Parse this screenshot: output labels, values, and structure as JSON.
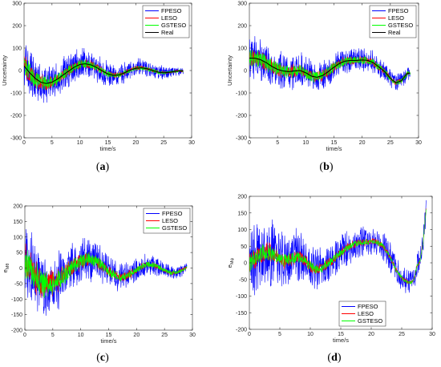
{
  "chart_data": [
    {
      "type": "line",
      "panel_label": "a",
      "xlabel": "time/s",
      "ylabel": "Uncertainty",
      "xlim": [
        0,
        30
      ],
      "ylim": [
        -300,
        300
      ],
      "x_ticks": [
        0,
        5,
        10,
        15,
        20,
        25,
        30
      ],
      "y_ticks": [
        -300,
        -200,
        -100,
        0,
        100,
        200,
        300
      ],
      "grid": false,
      "legend_position": "top-right",
      "x_end": 28.5,
      "real_curve": {
        "x": [
          0,
          1,
          2,
          3,
          4,
          5,
          6,
          7,
          8,
          9,
          10,
          11,
          12,
          13,
          14,
          15,
          16,
          17,
          18,
          19,
          20,
          21,
          22,
          23,
          24,
          25,
          26,
          27,
          28
        ],
        "y": [
          20,
          -10,
          -35,
          -52,
          -58,
          -52,
          -38,
          -20,
          -2,
          15,
          27,
          30,
          25,
          13,
          -2,
          -15,
          -22,
          -20,
          -10,
          2,
          10,
          12,
          8,
          0,
          -7,
          -10,
          -8,
          -4,
          -2
        ]
      },
      "series": [
        {
          "name": "FPESO",
          "color": "#0000ff",
          "noise_amplitude": [
            130,
            100,
            90,
            80,
            70,
            60,
            50,
            40,
            30,
            20
          ]
        },
        {
          "name": "LESO",
          "color": "#ff0000",
          "noise_amplitude": [
            60,
            40,
            30,
            25,
            20,
            15,
            12,
            10,
            8,
            6
          ]
        },
        {
          "name": "GSTESO",
          "color": "#00ff00",
          "noise_amplitude": [
            55,
            40,
            30,
            25,
            20,
            15,
            12,
            10,
            8,
            6
          ]
        },
        {
          "name": "Real",
          "color": "#000000"
        }
      ]
    },
    {
      "type": "line",
      "panel_label": "b",
      "xlabel": "time/s",
      "ylabel": "Uncertainty",
      "xlim": [
        0,
        30
      ],
      "ylim": [
        -300,
        300
      ],
      "x_ticks": [
        0,
        5,
        10,
        15,
        20,
        25,
        30
      ],
      "y_ticks": [
        -300,
        -200,
        -100,
        0,
        100,
        200,
        300
      ],
      "grid": false,
      "legend_position": "top-right",
      "x_end": 28.5,
      "real_curve": {
        "x": [
          0,
          1,
          2,
          3,
          4,
          5,
          6,
          7,
          8,
          9,
          10,
          11,
          12,
          13,
          14,
          15,
          16,
          17,
          18,
          19,
          20,
          21,
          22,
          23,
          24,
          25,
          26,
          27,
          28
        ],
        "y": [
          55,
          55,
          48,
          35,
          18,
          5,
          -2,
          -5,
          -2,
          0,
          -10,
          -25,
          -30,
          -22,
          -5,
          15,
          32,
          42,
          45,
          45,
          47,
          45,
          35,
          15,
          -5,
          -35,
          -55,
          -45,
          -12
        ]
      },
      "series": [
        {
          "name": "FPESO",
          "color": "#0000ff",
          "noise_amplitude": [
            110,
            100,
            90,
            85,
            75,
            70,
            60,
            55,
            45,
            35
          ]
        },
        {
          "name": "LESO",
          "color": "#ff0000",
          "noise_amplitude": [
            45,
            40,
            35,
            30,
            28,
            25,
            20,
            18,
            15,
            12
          ]
        },
        {
          "name": "GSTESO",
          "color": "#00ff00",
          "noise_amplitude": [
            45,
            40,
            35,
            30,
            28,
            25,
            20,
            18,
            15,
            12
          ]
        },
        {
          "name": "Real",
          "color": "#000000"
        }
      ]
    },
    {
      "type": "line",
      "panel_label": "c",
      "xlabel": "time/s",
      "ylabel": "e_{Mθ}",
      "xlim": [
        0,
        30
      ],
      "ylim": [
        -200,
        200
      ],
      "x_ticks": [
        0,
        5,
        10,
        15,
        20,
        25,
        30
      ],
      "y_ticks": [
        -200,
        -150,
        -100,
        -50,
        0,
        50,
        100,
        150,
        200
      ],
      "grid": false,
      "legend_position": "top-right",
      "x_end": 29,
      "real_curve": {
        "x": [
          0,
          1,
          2,
          3,
          4,
          5,
          6,
          7,
          8,
          9,
          10,
          11,
          12,
          13,
          14,
          15,
          16,
          17,
          18,
          19,
          20,
          21,
          22,
          23,
          24,
          25,
          26,
          27,
          28,
          29
        ],
        "y": [
          20,
          -5,
          -30,
          -50,
          -55,
          -50,
          -38,
          -22,
          -5,
          10,
          22,
          30,
          28,
          18,
          5,
          -10,
          -22,
          -30,
          -28,
          -18,
          -5,
          5,
          12,
          10,
          2,
          -8,
          -15,
          -15,
          -8,
          2
        ]
      },
      "series": [
        {
          "name": "FPESO",
          "color": "#0000ff",
          "noise_amplitude": [
            140,
            120,
            100,
            85,
            70,
            55,
            45,
            35,
            25,
            18
          ]
        },
        {
          "name": "LESO",
          "color": "#ff0000",
          "noise_amplitude": [
            70,
            55,
            40,
            30,
            22,
            18,
            14,
            11,
            8,
            6
          ]
        },
        {
          "name": "GSTESO",
          "color": "#00ff00",
          "noise_amplitude": [
            60,
            50,
            35,
            28,
            20,
            15,
            12,
            10,
            8,
            6
          ]
        }
      ]
    },
    {
      "type": "line",
      "panel_label": "d",
      "xlabel": "time/s",
      "ylabel": "e_{Mψ}",
      "xlim": [
        0,
        30
      ],
      "ylim": [
        -200,
        200
      ],
      "x_ticks": [
        0,
        5,
        10,
        15,
        20,
        25,
        30
      ],
      "y_ticks": [
        -200,
        -150,
        -100,
        -50,
        0,
        50,
        100,
        150,
        200
      ],
      "grid": false,
      "legend_position": "bottom-left",
      "x_end": 29,
      "real_curve": {
        "x": [
          0,
          1,
          2,
          3,
          4,
          5,
          6,
          7,
          8,
          9,
          10,
          11,
          12,
          13,
          14,
          15,
          16,
          17,
          18,
          19,
          20,
          21,
          22,
          23,
          24,
          25,
          26,
          26.5,
          27,
          27.5,
          28,
          28.5,
          29
        ],
        "y": [
          0,
          15,
          30,
          35,
          25,
          10,
          5,
          15,
          20,
          10,
          -10,
          -20,
          -15,
          0,
          15,
          30,
          45,
          55,
          60,
          62,
          65,
          62,
          50,
          20,
          -20,
          -45,
          -60,
          -60,
          -50,
          -10,
          5,
          60,
          160
        ]
      },
      "series": [
        {
          "name": "FPESO",
          "color": "#0000ff",
          "noise_amplitude": [
            120,
            110,
            95,
            80,
            70,
            60,
            55,
            50,
            45,
            40
          ]
        },
        {
          "name": "LESO",
          "color": "#ff0000",
          "noise_amplitude": [
            40,
            30,
            25,
            20,
            18,
            15,
            12,
            10,
            8,
            6
          ]
        },
        {
          "name": "GSTESO",
          "color": "#00ff00",
          "noise_amplitude": [
            35,
            28,
            22,
            18,
            15,
            12,
            10,
            8,
            6,
            5
          ]
        }
      ]
    }
  ]
}
